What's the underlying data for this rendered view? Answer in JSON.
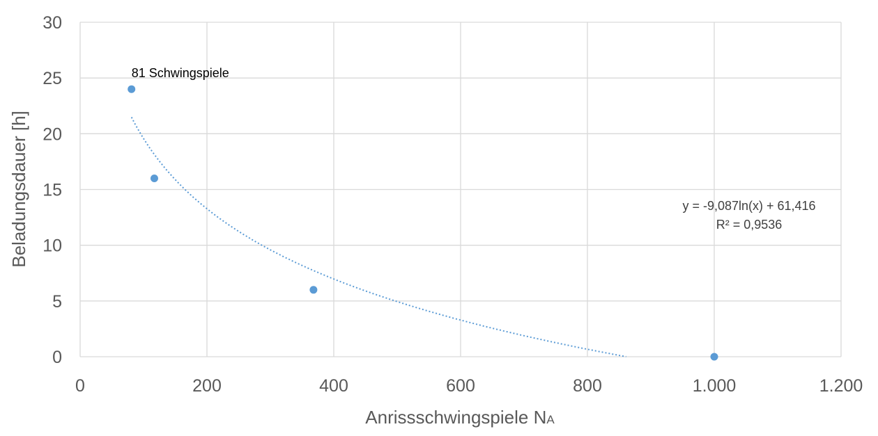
{
  "chart_data": {
    "type": "scatter",
    "title": "",
    "xlabel": "Anrissschwingspiele N",
    "xlabel_subscript": "A",
    "ylabel": "Beladungsdauer [h]",
    "xlim": [
      0,
      1200
    ],
    "ylim": [
      0,
      30
    ],
    "x_ticks": [
      0,
      200,
      400,
      600,
      800,
      1000,
      1200
    ],
    "x_tick_labels": [
      "0",
      "200",
      "400",
      "600",
      "800",
      "1.000",
      "1.200"
    ],
    "y_ticks": [
      0,
      5,
      10,
      15,
      20,
      25,
      30
    ],
    "y_tick_labels": [
      "0",
      "5",
      "10",
      "15",
      "20",
      "25",
      "30"
    ],
    "grid": true,
    "legend": "none",
    "colors": {
      "points": "#5b9bd5",
      "grid": "#d9d9d9",
      "text": "#595959"
    },
    "series": [
      {
        "x": [
          81,
          117,
          368,
          1000
        ],
        "y": [
          24,
          16,
          6,
          0
        ]
      }
    ],
    "point_labels": [
      {
        "x": 81,
        "y": 24,
        "text": "81 Schwingspiele"
      }
    ],
    "trendline": {
      "type": "logarithmic",
      "a": -9.087,
      "b": 61.416,
      "x_range": [
        81,
        861
      ],
      "equation_text": "y = -9,087ln(x) + 61,416",
      "r2_text": "R² = 0,9536"
    }
  }
}
